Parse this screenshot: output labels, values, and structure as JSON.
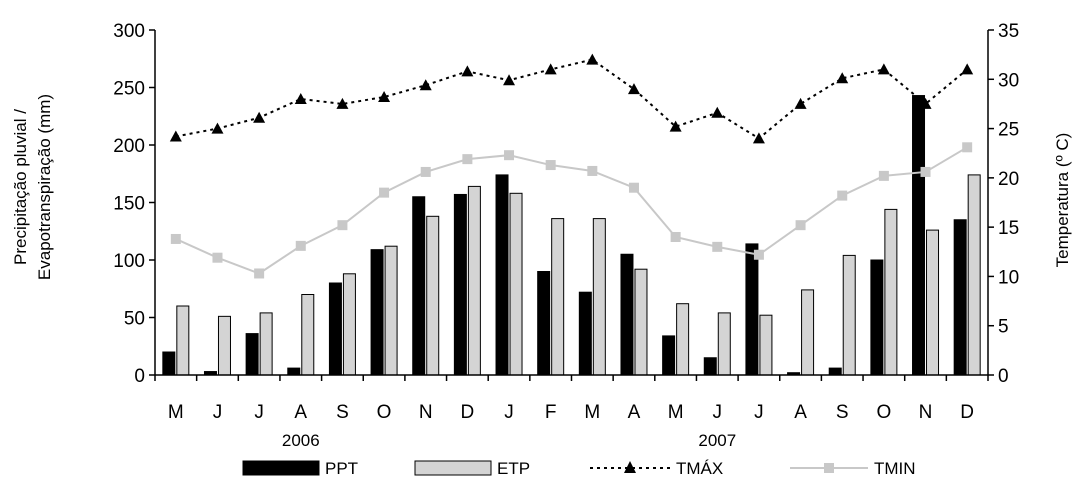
{
  "chart_data": {
    "type": "bar",
    "categories": [
      "M",
      "J",
      "J",
      "A",
      "S",
      "O",
      "N",
      "D",
      "J",
      "F",
      "M",
      "A",
      "M",
      "J",
      "J",
      "A",
      "S",
      "O",
      "N",
      "D"
    ],
    "year_labels": [
      {
        "label": "2006",
        "category_index": 3
      },
      {
        "label": "2007",
        "category_index": 13
      }
    ],
    "ylabel_left": [
      "Precipitação pluvial /",
      "Evapotranspiração (mm)"
    ],
    "ylabel_right": "Temperatura (º C)",
    "ylim_left": [
      0,
      300
    ],
    "yticks_left": [
      0,
      50,
      100,
      150,
      200,
      250,
      300
    ],
    "ylim_right": [
      0,
      35
    ],
    "yticks_right": [
      0,
      5,
      10,
      15,
      20,
      25,
      30,
      35
    ],
    "bar_series": [
      {
        "name": "PPT",
        "color": "#000000",
        "values": [
          20,
          3,
          36,
          6,
          80,
          109,
          155,
          157,
          174,
          90,
          72,
          105,
          34,
          15,
          114,
          2,
          6,
          100,
          243,
          135
        ]
      },
      {
        "name": "ETP",
        "color": "#d4d4d4",
        "values": [
          60,
          51,
          54,
          70,
          88,
          112,
          138,
          164,
          158,
          136,
          136,
          92,
          62,
          54,
          52,
          74,
          104,
          144,
          126,
          174
        ]
      }
    ],
    "line_series": [
      {
        "name": "TMÁX",
        "color": "#000000",
        "axis": "right",
        "style": "dotted",
        "marker": "triangle",
        "values": [
          24.2,
          25.0,
          26.1,
          28.0,
          27.5,
          28.2,
          29.4,
          30.8,
          29.9,
          31.0,
          32.0,
          29.0,
          25.2,
          26.6,
          24.0,
          27.5,
          30.1,
          31.0,
          27.5,
          31.0
        ]
      },
      {
        "name": "TMIN",
        "color": "#c8c8c8",
        "axis": "right",
        "style": "solid",
        "marker": "square",
        "values": [
          13.8,
          11.9,
          10.3,
          13.1,
          15.2,
          18.5,
          20.6,
          21.9,
          22.3,
          21.3,
          20.7,
          19.0,
          14.0,
          13.0,
          12.2,
          15.2,
          18.2,
          20.2,
          20.6,
          23.1
        ]
      }
    ],
    "legend": {
      "placement": "bottom"
    },
    "grid": false
  }
}
